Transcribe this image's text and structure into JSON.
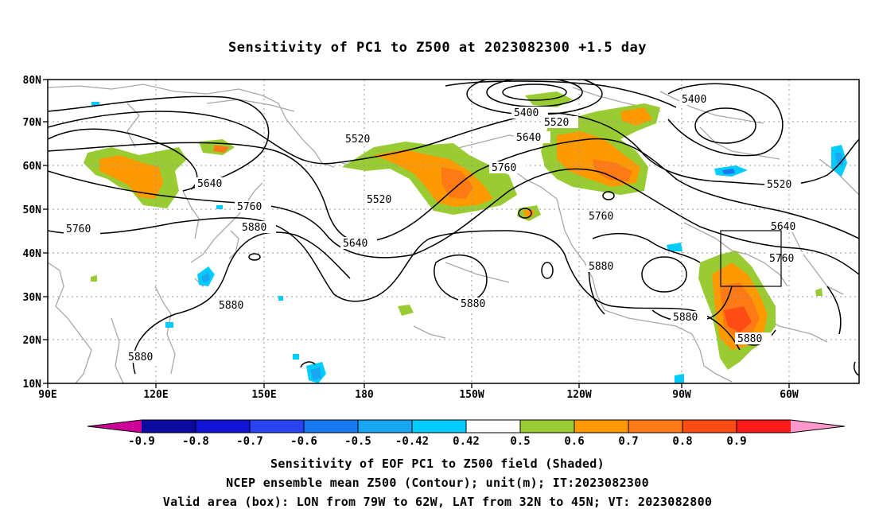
{
  "title": "Sensitivity of PC1 to Z500 at 2023082300 +1.5 day",
  "lat_labels": [
    "80N",
    "70N",
    "60N",
    "50N",
    "40N",
    "30N",
    "20N",
    "10N"
  ],
  "lon_labels": [
    "90E",
    "120E",
    "150E",
    "180",
    "150W",
    "120W",
    "90W",
    "60W"
  ],
  "contour_labels": [
    "5400",
    "5400",
    "5520",
    "5520",
    "5520",
    "5520",
    "5640",
    "5640",
    "5640",
    "5640",
    "5760",
    "5760",
    "5760",
    "5760",
    "5760",
    "5880",
    "5880",
    "5880",
    "5880",
    "5880",
    "5880",
    "5880"
  ],
  "colorbar": {
    "labels": [
      "-0.9",
      "-0.8",
      "-0.7",
      "-0.6",
      "-0.5",
      "-0.42",
      "0.42",
      "0.5",
      "0.6",
      "0.7",
      "0.8",
      "0.9"
    ],
    "colors": [
      "#0a0a9e",
      "#1414d6",
      "#2843f2",
      "#1a78f0",
      "#1aa6f2",
      "#00ccff",
      "#ffffff",
      "#99cc33",
      "#ff9900",
      "#ff7a14",
      "#ff4c14",
      "#ff1a1a"
    ],
    "low_end_color": "#cc0099",
    "high_end_color": "#ff99cc"
  },
  "captions": [
    "Sensitivity of EOF PC1 to Z500 field (Shaded)",
    "NCEP ensemble mean Z500 (Contour); unit(m); IT:2023082300",
    "Valid area (box): LON from 79W to 62W, LAT from 32N to 45N; VT: 2023082800"
  ],
  "valid_box": {
    "lon_west": "79W",
    "lon_east": "62W",
    "lat_south": "32N",
    "lat_north": "45N"
  }
}
